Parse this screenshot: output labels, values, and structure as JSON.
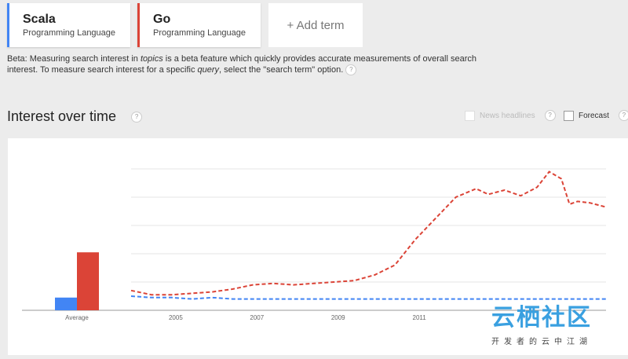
{
  "colors": {
    "scala": "#4285f4",
    "go": "#db4437",
    "background": "#ececec",
    "watermark": "#3aa0e0"
  },
  "terms": [
    {
      "name": "Scala",
      "type": "Programming Language",
      "color": "#4285f4"
    },
    {
      "name": "Go",
      "type": "Programming Language",
      "color": "#db4437"
    }
  ],
  "add_term": {
    "label": "+ Add term"
  },
  "beta_note": {
    "part1": "Beta: Measuring search interest in ",
    "topics": "topics",
    "part2": " is a beta feature which quickly provides accurate measurements of overall search interest. To measure search interest for a specific ",
    "query": "query",
    "part3": ", select the \"search term\" option.",
    "help": "?"
  },
  "interest_section": {
    "title": "Interest over time",
    "help": "?",
    "news_headlines": "News headlines",
    "forecast": "Forecast"
  },
  "icons": {
    "help": "question-mark-circle-icon",
    "checkbox": "checkbox-icon"
  },
  "watermark": {
    "main": "云栖社区",
    "sub": "开发者的云中江湖"
  },
  "chart_data": {
    "type": "line",
    "average_bars": {
      "label": "Average",
      "values": [
        {
          "series": "Scala",
          "value": 9
        },
        {
          "series": "Go",
          "value": 41
        }
      ]
    },
    "x_ticks": [
      "2005",
      "2007",
      "2009",
      "2011"
    ],
    "ylim": [
      0,
      100
    ],
    "grid": true,
    "series": [
      {
        "color": "#4285f4",
        "points": [
          [
            2004.0,
            10
          ],
          [
            2004.5,
            9
          ],
          [
            2005.0,
            9
          ],
          [
            2005.5,
            8
          ],
          [
            2006.0,
            9
          ],
          [
            2006.5,
            8
          ],
          [
            2007.0,
            8
          ],
          [
            2007.5,
            8
          ],
          [
            2008.0,
            8
          ],
          [
            2008.5,
            8
          ],
          [
            2009.0,
            8
          ],
          [
            2009.5,
            8
          ],
          [
            2010.0,
            8
          ],
          [
            2010.5,
            8
          ],
          [
            2011.0,
            8
          ],
          [
            2011.5,
            8
          ],
          [
            2012.0,
            8
          ],
          [
            2012.5,
            8
          ],
          [
            2013.0,
            8
          ],
          [
            2013.5,
            8
          ],
          [
            2014.0,
            8
          ],
          [
            2014.5,
            8
          ],
          [
            2015.0,
            8
          ],
          [
            2015.7,
            8
          ]
        ]
      },
      {
        "color": "#db4437",
        "points": [
          [
            2004.0,
            14
          ],
          [
            2004.5,
            11
          ],
          [
            2005.0,
            11
          ],
          [
            2005.5,
            12
          ],
          [
            2006.0,
            13
          ],
          [
            2006.5,
            15
          ],
          [
            2007.0,
            18
          ],
          [
            2007.5,
            19
          ],
          [
            2008.0,
            18
          ],
          [
            2008.5,
            19
          ],
          [
            2009.0,
            20
          ],
          [
            2009.5,
            21
          ],
          [
            2010.0,
            25
          ],
          [
            2010.5,
            32
          ],
          [
            2011.0,
            50
          ],
          [
            2011.5,
            65
          ],
          [
            2012.0,
            80
          ],
          [
            2012.5,
            86
          ],
          [
            2012.8,
            82
          ],
          [
            2013.2,
            85
          ],
          [
            2013.6,
            81
          ],
          [
            2014.0,
            87
          ],
          [
            2014.3,
            98
          ],
          [
            2014.6,
            93
          ],
          [
            2014.8,
            75
          ],
          [
            2015.0,
            77
          ],
          [
            2015.3,
            76
          ],
          [
            2015.7,
            73
          ]
        ]
      }
    ]
  }
}
